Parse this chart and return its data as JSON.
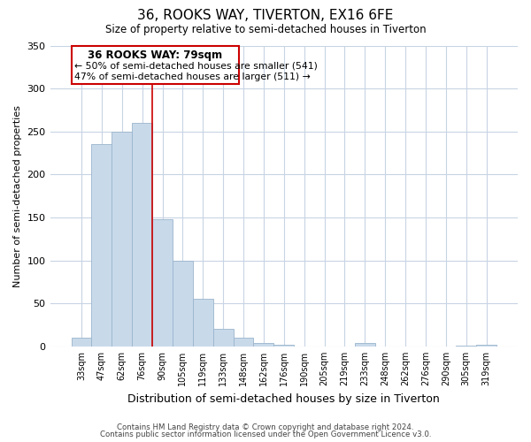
{
  "title": "36, ROOKS WAY, TIVERTON, EX16 6FE",
  "subtitle": "Size of property relative to semi-detached houses in Tiverton",
  "xlabel": "Distribution of semi-detached houses by size in Tiverton",
  "ylabel": "Number of semi-detached properties",
  "footnote1": "Contains HM Land Registry data © Crown copyright and database right 2024.",
  "footnote2": "Contains public sector information licensed under the Open Government Licence v3.0.",
  "bar_labels": [
    "33sqm",
    "47sqm",
    "62sqm",
    "76sqm",
    "90sqm",
    "105sqm",
    "119sqm",
    "133sqm",
    "148sqm",
    "162sqm",
    "176sqm",
    "190sqm",
    "205sqm",
    "219sqm",
    "233sqm",
    "248sqm",
    "262sqm",
    "276sqm",
    "290sqm",
    "305sqm",
    "319sqm"
  ],
  "bar_values": [
    10,
    235,
    250,
    260,
    148,
    100,
    55,
    20,
    10,
    4,
    2,
    0,
    0,
    0,
    4,
    0,
    0,
    0,
    0,
    1,
    2
  ],
  "bar_color": "#c8d9ea",
  "bar_edge_color": "#9ab5cc",
  "property_line_color": "#cc0000",
  "property_line_x": 3.5,
  "annotation_box_color": "#cc0000",
  "annotation_title": "36 ROOKS WAY: 79sqm",
  "annotation_line1": "← 50% of semi-detached houses are smaller (541)",
  "annotation_line2": "47% of semi-detached houses are larger (511) →",
  "ylim": [
    0,
    350
  ],
  "yticks": [
    0,
    50,
    100,
    150,
    200,
    250,
    300,
    350
  ],
  "background_color": "#ffffff",
  "grid_color": "#c8d4e4"
}
